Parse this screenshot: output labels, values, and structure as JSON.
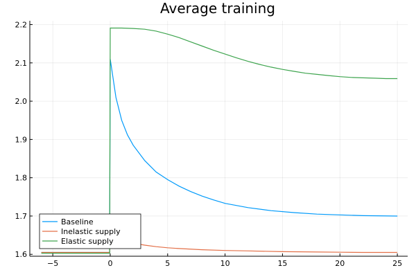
{
  "chart_data": {
    "type": "line",
    "title": "Average training",
    "xlabel": "",
    "ylabel": "",
    "xlim": [
      -7,
      25.9
    ],
    "ylim": [
      1.595,
      2.21
    ],
    "xticks": [
      -5,
      0,
      5,
      10,
      15,
      20,
      25
    ],
    "yticks": [
      1.6,
      1.7,
      1.8,
      1.9,
      2.0,
      2.1,
      2.2
    ],
    "xtick_labels": [
      "−5",
      "0",
      "5",
      "10",
      "15",
      "20",
      "25"
    ],
    "ytick_labels": [
      "1.6",
      "1.7",
      "1.8",
      "1.9",
      "2.0",
      "2.1",
      "2.2"
    ],
    "grid": true,
    "legend_position": "bottom-left",
    "series": [
      {
        "name": "Baseline",
        "color": "#009AFA",
        "x": [
          -6,
          -0.05,
          0,
          0.5,
          1,
          1.5,
          2,
          3,
          4,
          5,
          6,
          7,
          8,
          9,
          10,
          12,
          14,
          16,
          18,
          20,
          22,
          25
        ],
        "y": [
          1.605,
          1.605,
          2.11,
          2.01,
          1.95,
          1.912,
          1.885,
          1.845,
          1.815,
          1.795,
          1.778,
          1.764,
          1.752,
          1.742,
          1.733,
          1.722,
          1.714,
          1.709,
          1.705,
          1.703,
          1.701,
          1.7
        ]
      },
      {
        "name": "Inelastic supply",
        "color": "#E36F47",
        "x": [
          -6,
          -0.05,
          0,
          0.5,
          1,
          2,
          3,
          4,
          5,
          6,
          8,
          10,
          12,
          15,
          18,
          20,
          22,
          25
        ],
        "y": [
          1.605,
          1.605,
          1.648,
          1.641,
          1.636,
          1.629,
          1.624,
          1.62,
          1.617,
          1.615,
          1.612,
          1.61,
          1.609,
          1.607,
          1.606,
          1.6055,
          1.605,
          1.605
        ]
      },
      {
        "name": "Elastic supply",
        "color": "#3EA44E",
        "x": [
          -6,
          -0.05,
          0,
          1,
          2,
          3,
          4,
          5,
          6,
          7,
          8,
          9,
          10,
          11,
          12,
          13,
          14,
          15,
          16,
          17,
          18,
          19,
          20,
          21,
          22,
          23,
          24,
          25
        ],
        "y": [
          1.603,
          1.603,
          2.191,
          2.191,
          2.19,
          2.188,
          2.183,
          2.175,
          2.166,
          2.155,
          2.144,
          2.133,
          2.123,
          2.113,
          2.104,
          2.096,
          2.089,
          2.083,
          2.078,
          2.073,
          2.07,
          2.067,
          2.064,
          2.062,
          2.061,
          2.06,
          2.059,
          2.059
        ]
      }
    ]
  }
}
